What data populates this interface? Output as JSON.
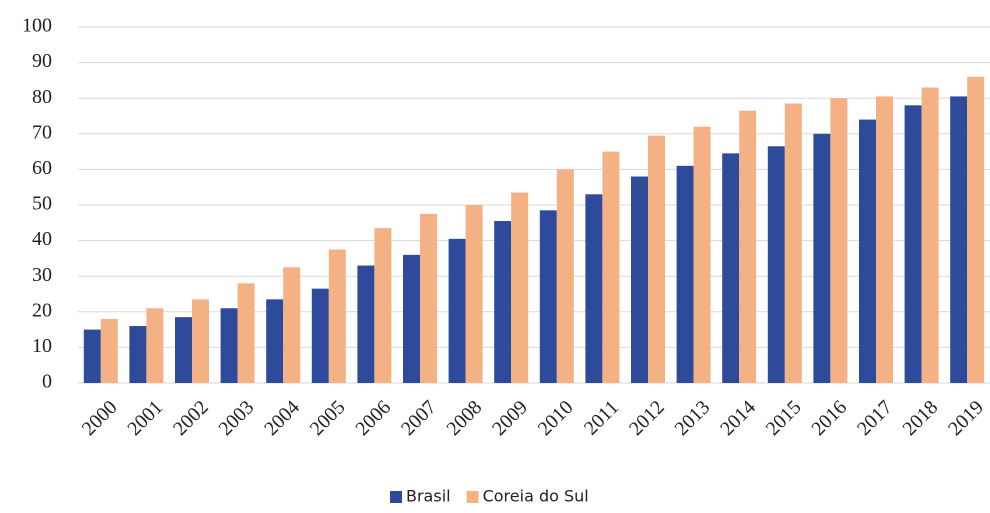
{
  "chart_data": {
    "type": "bar",
    "categories": [
      "2000",
      "2001",
      "2002",
      "2003",
      "2004",
      "2005",
      "2006",
      "2007",
      "2008",
      "2009",
      "2010",
      "2011",
      "2012",
      "2013",
      "2014",
      "2015",
      "2016",
      "2017",
      "2018",
      "2019"
    ],
    "series": [
      {
        "name": "Brasil",
        "color": "#2e4a9a",
        "values": [
          15,
          16,
          18.5,
          21,
          23.5,
          26.5,
          33,
          36,
          40.5,
          45.5,
          48.5,
          53,
          58,
          61,
          64.5,
          66.5,
          70,
          74,
          78,
          80.5
        ]
      },
      {
        "name": "Coreia do Sul",
        "color": "#f4b183",
        "values": [
          18,
          21,
          23.5,
          28,
          32.5,
          37.5,
          43.5,
          47.5,
          50,
          53.5,
          60,
          65,
          69.5,
          72,
          76.5,
          78.5,
          80,
          80.5,
          83,
          86
        ]
      }
    ],
    "ylim": [
      0,
      100
    ],
    "yticks": [
      0,
      10,
      20,
      30,
      40,
      50,
      60,
      70,
      80,
      90,
      100
    ],
    "grid": true,
    "legend": "bottom"
  }
}
